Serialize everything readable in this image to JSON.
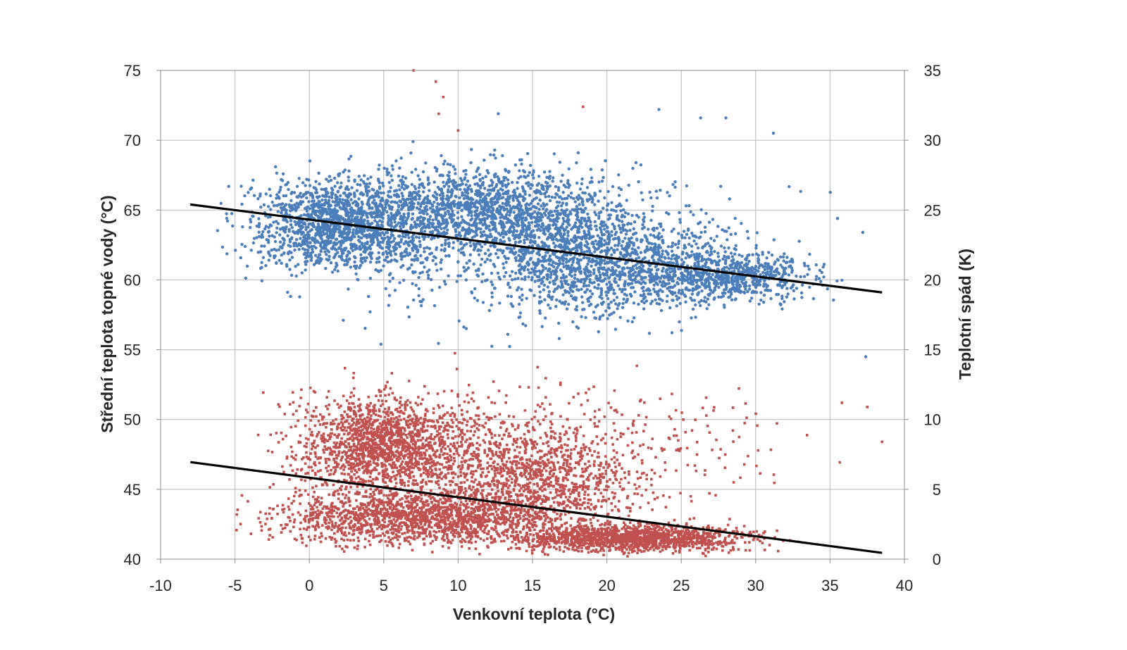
{
  "chart_data": {
    "type": "scatter",
    "xlabel": "Venkovní teplota (°C)",
    "ylabel_left": "Střední teplota topné vody (°C)",
    "ylabel_right": "Teplotní spád (K)",
    "xlim": [
      -10,
      40
    ],
    "ylim_left": [
      40,
      75
    ],
    "ylim_right": [
      0,
      35
    ],
    "x_ticks": [
      "-10",
      "-5",
      "0",
      "5",
      "10",
      "15",
      "20",
      "25",
      "30",
      "35",
      "40"
    ],
    "y_left_ticks": [
      "40",
      "45",
      "50",
      "55",
      "60",
      "65",
      "70",
      "75"
    ],
    "y_right_ticks": [
      "0",
      "5",
      "10",
      "15",
      "20",
      "25",
      "30",
      "35"
    ],
    "grid": true,
    "legend": "none",
    "series": [
      {
        "axis": "left",
        "color": "#4a7ebb",
        "marker": "circle",
        "trend_line": {
          "x": [
            -8,
            38.5
          ],
          "y": [
            65.4,
            59.1
          ]
        },
        "clusters": [
          {
            "x_range": [
              -7.5,
              12
            ],
            "y_range": [
              59,
              69
            ],
            "n": 1500
          },
          {
            "x_range": [
              0,
              24
            ],
            "y_range": [
              60,
              70
            ],
            "n": 1300
          },
          {
            "x_range": [
              9,
              31
            ],
            "y_range": [
              55.5,
              67
            ],
            "n": 1100
          },
          {
            "x_range": [
              20,
              37
            ],
            "y_range": [
              57.5,
              63
            ],
            "n": 700
          },
          {
            "x_range": [
              -7,
              38
            ],
            "y_range": [
              54,
              71
            ],
            "n": 700
          }
        ],
        "notable_points": [
          {
            "x": 12.7,
            "y": 71.9
          },
          {
            "x": 23.5,
            "y": 72.2
          },
          {
            "x": 26.3,
            "y": 71.6
          },
          {
            "x": 28,
            "y": 71.6
          },
          {
            "x": 31.2,
            "y": 70.5
          },
          {
            "x": 37.2,
            "y": 63.4
          },
          {
            "x": 37.4,
            "y": 54.5
          },
          {
            "x": 35.5,
            "y": 64.4
          }
        ]
      },
      {
        "axis": "right",
        "color": "#c0504d",
        "marker": "square",
        "trend_line": {
          "x": [
            -8,
            38.5
          ],
          "y": [
            6.95,
            0.45
          ]
        },
        "clusters": [
          {
            "x_range": [
              -4,
              14
            ],
            "y_range": [
              3,
              13.5
            ],
            "n": 1600
          },
          {
            "x_range": [
              -7,
              22
            ],
            "y_range": [
              0,
              6
            ],
            "n": 1600
          },
          {
            "x_range": [
              10,
              34
            ],
            "y_range": [
              0,
              3
            ],
            "n": 1400
          },
          {
            "x_range": [
              5,
              25
            ],
            "y_range": [
              0,
              11
            ],
            "n": 900
          },
          {
            "x_range": [
              -8,
              38
            ],
            "y_range": [
              0,
              15.5
            ],
            "n": 700
          }
        ],
        "notable_points": [
          {
            "x": 7,
            "y": 35
          },
          {
            "x": 8.5,
            "y": 34.2
          },
          {
            "x": 9,
            "y": 33.1
          },
          {
            "x": 8.7,
            "y": 31.9
          },
          {
            "x": 18.4,
            "y": 32.4
          },
          {
            "x": 10,
            "y": 30.7
          },
          {
            "x": 38.5,
            "y": 8.4
          },
          {
            "x": 37.5,
            "y": 10.9
          },
          {
            "x": 35.8,
            "y": 11.2
          }
        ]
      }
    ]
  }
}
